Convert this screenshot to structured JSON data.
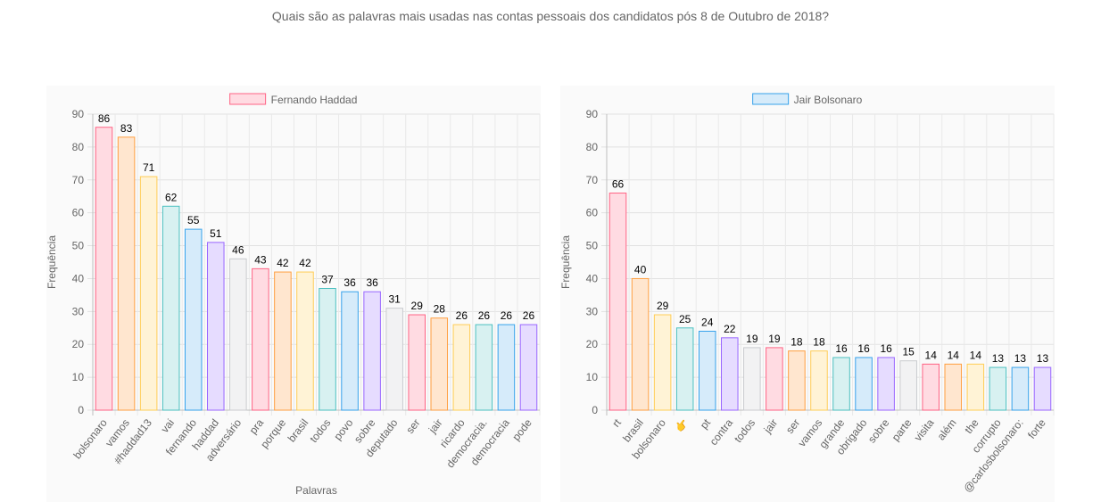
{
  "page": {
    "title": "Quais são as palavras mais usadas nas contas pessoais dos candidatos pós 8 de Outubro de 2018?"
  },
  "chart_data": [
    {
      "type": "bar",
      "legend": "Fernando Haddad",
      "legend_position": "top",
      "ylabel": "Frequência",
      "xlabel": "Palavras",
      "ylim": [
        0,
        90
      ],
      "yticks": [
        0,
        10,
        20,
        30,
        40,
        50,
        60,
        70,
        80,
        90
      ],
      "grid": true,
      "categories": [
        "bolsonaro",
        "vamos",
        "#haddad13",
        "vai",
        "fernando",
        "haddad",
        "adversário",
        "pra",
        "porque",
        "brasil",
        "todos",
        "povo",
        "sobre",
        "deputado",
        "ser",
        "jair",
        "ricardo",
        "democracia.",
        "democracia",
        "pode"
      ],
      "values": [
        86,
        83,
        71,
        62,
        55,
        51,
        46,
        43,
        42,
        42,
        37,
        36,
        36,
        31,
        29,
        28,
        26,
        26,
        26,
        26
      ],
      "legend_fill": "#ffdbe2",
      "legend_stroke": "#ff6384"
    },
    {
      "type": "bar",
      "legend": "Jair Bolsonaro",
      "legend_position": "top",
      "ylabel": "Frequência",
      "xlabel": "",
      "ylim": [
        0,
        90
      ],
      "yticks": [
        0,
        10,
        20,
        30,
        40,
        50,
        60,
        70,
        80,
        90
      ],
      "grid": true,
      "categories": [
        "rt",
        "brasil",
        "bolsonaro",
        "👉",
        "pt",
        "contra",
        "todos",
        "jair",
        "ser",
        "vamos",
        "grande",
        "obrigado",
        "sobre",
        "parte",
        "visita",
        "além",
        "the",
        "corrupto",
        "@carlosbolsonaro:",
        "forte"
      ],
      "values": [
        66,
        40,
        29,
        25,
        24,
        22,
        19,
        19,
        18,
        18,
        16,
        16,
        16,
        15,
        14,
        14,
        14,
        13,
        13,
        13
      ],
      "legend_fill": "#d6ebfa",
      "legend_stroke": "#36a2eb"
    }
  ],
  "palette": [
    {
      "fill": "#ffdbe2",
      "stroke": "#ff6384"
    },
    {
      "fill": "#ffe6cf",
      "stroke": "#ff9f40"
    },
    {
      "fill": "#fff3d6",
      "stroke": "#ffcd56"
    },
    {
      "fill": "#d8f1f1",
      "stroke": "#4bc0c0"
    },
    {
      "fill": "#d6ebfa",
      "stroke": "#36a2eb"
    },
    {
      "fill": "#e6dcff",
      "stroke": "#9966ff"
    },
    {
      "fill": "#f2f2f3",
      "stroke": "#c9cbcf"
    }
  ]
}
